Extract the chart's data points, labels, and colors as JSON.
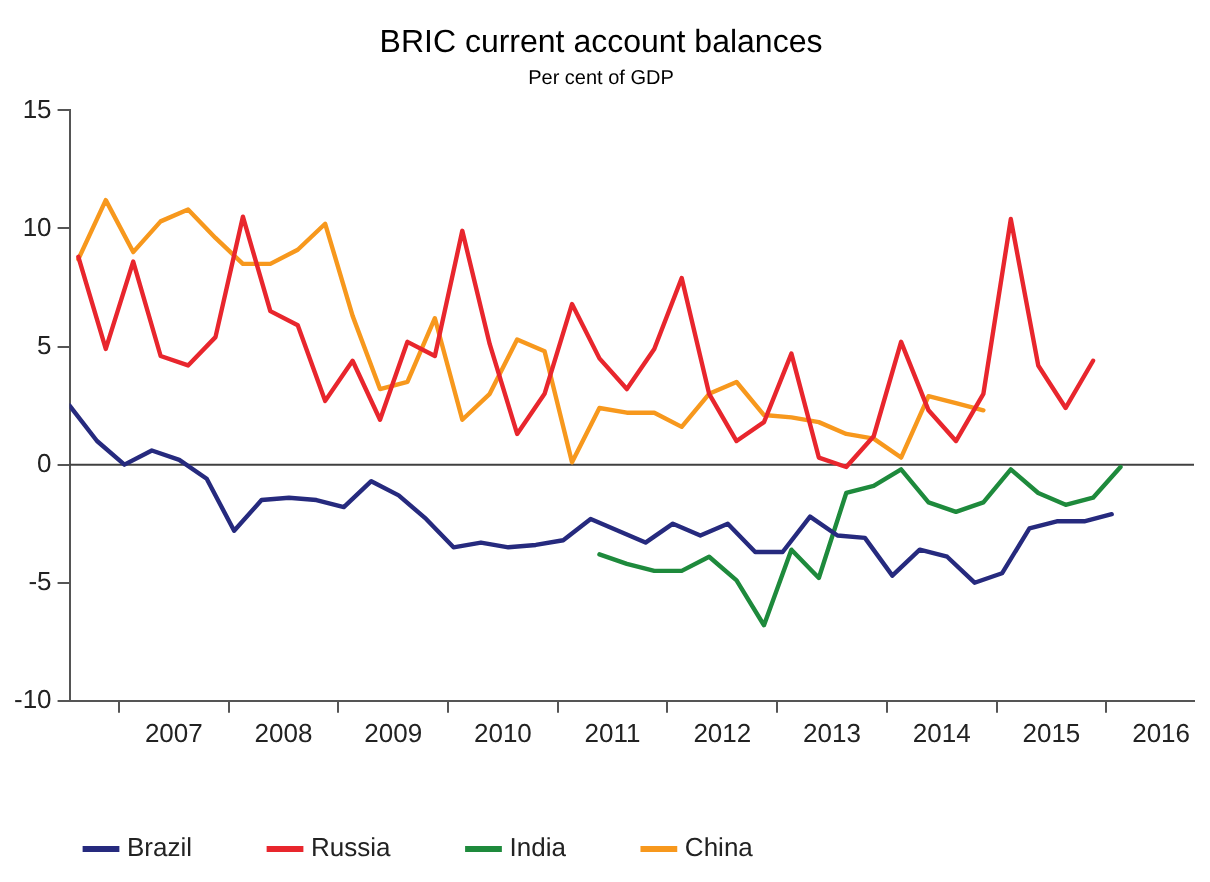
{
  "chart_data": {
    "type": "line",
    "title": "BRIC current account balances",
    "subtitle": "Per cent of GDP",
    "xlim": [
      2006.55,
      2016.8
    ],
    "xticks": [
      {
        "value": 2007,
        "label": null
      },
      {
        "value": 2007.5,
        "label": "2007"
      },
      {
        "value": 2008,
        "label": null
      },
      {
        "value": 2008.5,
        "label": "2008"
      },
      {
        "value": 2009,
        "label": null
      },
      {
        "value": 2009.5,
        "label": "2009"
      },
      {
        "value": 2010,
        "label": null
      },
      {
        "value": 2010.5,
        "label": "2010"
      },
      {
        "value": 2011,
        "label": null
      },
      {
        "value": 2011.5,
        "label": "2011"
      },
      {
        "value": 2012,
        "label": null
      },
      {
        "value": 2012.5,
        "label": "2012"
      },
      {
        "value": 2013,
        "label": null
      },
      {
        "value": 2013.5,
        "label": "2013"
      },
      {
        "value": 2014,
        "label": null
      },
      {
        "value": 2014.5,
        "label": "2014"
      },
      {
        "value": 2015,
        "label": null
      },
      {
        "value": 2015.5,
        "label": "2015"
      },
      {
        "value": 2016,
        "label": null
      },
      {
        "value": 2016.5,
        "label": "2016"
      }
    ],
    "ylim": [
      -10,
      15
    ],
    "yticks": [
      -10,
      -5,
      0,
      5,
      10,
      15
    ],
    "grid": false,
    "legend": "bottom",
    "marker": "none",
    "line_style": "solid",
    "ref_lines": [
      {
        "axis": "y",
        "value": 0,
        "color": "#404040"
      }
    ],
    "series": [
      {
        "name": "Brazil",
        "color": "#262a7e",
        "x": [
          2006.55,
          2006.8,
          2007.05,
          2007.3,
          2007.55,
          2007.8,
          2008.05,
          2008.3,
          2008.55,
          2008.8,
          2009.05,
          2009.3,
          2009.55,
          2009.8,
          2010.05,
          2010.3,
          2010.55,
          2010.8,
          2011.05,
          2011.3,
          2011.55,
          2011.8,
          2012.05,
          2012.3,
          2012.55,
          2012.8,
          2013.05,
          2013.3,
          2013.55,
          2013.8,
          2014.05,
          2014.3,
          2014.55,
          2014.8,
          2015.05,
          2015.3,
          2015.55,
          2015.8,
          2016.05
        ],
        "values": [
          2.5,
          1.0,
          0,
          0.6,
          0.2,
          -0.6,
          -2.8,
          -1.5,
          -1.4,
          -1.5,
          -1.8,
          -0.7,
          -1.3,
          -2.3,
          -3.5,
          -3.3,
          -3.5,
          -3.4,
          -3.2,
          -2.3,
          -2.8,
          -3.3,
          -2.5,
          -3.0,
          -2.5,
          -3.7,
          -3.7,
          -2.2,
          -3.0,
          -3.1,
          -4.7,
          -3.6,
          -3.9,
          -5.0,
          -4.6,
          -2.7,
          -2.4,
          -2.4,
          -2.1
        ]
      },
      {
        "name": "Russia",
        "color": "#e8262d",
        "x": [
          2006.63,
          2006.88,
          2007.13,
          2007.38,
          2007.63,
          2007.88,
          2008.13,
          2008.38,
          2008.63,
          2008.88,
          2009.13,
          2009.38,
          2009.63,
          2009.88,
          2010.13,
          2010.38,
          2010.63,
          2010.88,
          2011.13,
          2011.38,
          2011.63,
          2011.88,
          2012.13,
          2012.38,
          2012.63,
          2012.88,
          2013.13,
          2013.38,
          2013.63,
          2013.88,
          2014.13,
          2014.38,
          2014.63,
          2014.88,
          2015.13,
          2015.38,
          2015.63,
          2015.88
        ],
        "values": [
          8.8,
          4.9,
          8.6,
          4.6,
          4.2,
          5.4,
          10.5,
          6.5,
          5.9,
          2.7,
          4.4,
          1.9,
          5.2,
          4.6,
          9.9,
          5.1,
          1.3,
          3.0,
          6.8,
          4.5,
          3.2,
          4.9,
          7.9,
          3.0,
          1.0,
          1.8,
          4.7,
          0.3,
          -0.1,
          1.2,
          5.2,
          2.3,
          1.0,
          3.0,
          10.4,
          4.2,
          2.4,
          4.4
        ]
      },
      {
        "name": "India",
        "color": "#1e8a3c",
        "x": [
          2011.38,
          2011.63,
          2011.88,
          2012.13,
          2012.38,
          2012.63,
          2012.88,
          2013.13,
          2013.38,
          2013.63,
          2013.88,
          2014.13,
          2014.38,
          2014.63,
          2014.88,
          2015.13,
          2015.38,
          2015.63,
          2015.88,
          2016.13
        ],
        "values": [
          -3.8,
          -4.2,
          -4.5,
          -4.5,
          -3.9,
          -4.9,
          -6.8,
          -3.6,
          -4.8,
          -1.2,
          -0.9,
          -0.2,
          -1.6,
          -2.0,
          -1.6,
          -0.2,
          -1.2,
          -1.7,
          -1.4,
          -0.1
        ]
      },
      {
        "name": "China",
        "color": "#f7981d",
        "x": [
          2006.63,
          2006.88,
          2007.13,
          2007.38,
          2007.63,
          2007.88,
          2008.13,
          2008.38,
          2008.63,
          2008.88,
          2009.13,
          2009.38,
          2009.63,
          2009.88,
          2010.13,
          2010.38,
          2010.63,
          2010.88,
          2011.13,
          2011.38,
          2011.63,
          2011.88,
          2012.13,
          2012.38,
          2012.63,
          2012.88,
          2013.13,
          2013.38,
          2013.63,
          2013.88,
          2014.13,
          2014.38,
          2014.63,
          2014.88
        ],
        "values": [
          8.7,
          11.2,
          9.0,
          10.3,
          10.8,
          9.6,
          8.5,
          8.5,
          9.1,
          10.2,
          6.3,
          3.2,
          3.5,
          6.2,
          1.9,
          3.0,
          5.3,
          4.8,
          0.1,
          2.4,
          2.2,
          2.2,
          1.6,
          3.0,
          3.5,
          2.1,
          2.0,
          1.8,
          1.3,
          1.1,
          0.3,
          2.9,
          2.6,
          2.3
        ]
      }
    ]
  }
}
